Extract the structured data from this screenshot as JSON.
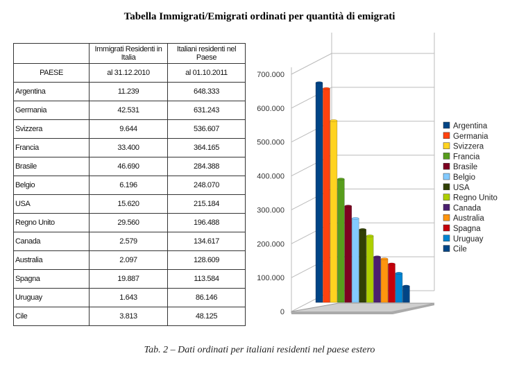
{
  "title": "Tabella Immigrati/Emigrati ordinati per quantità di emigrati",
  "caption": "Tab. 2 – Dati ordinati per italiani residenti nel paese estero",
  "table": {
    "header1": [
      "",
      "Immigrati  Residenti  in Italia",
      "Italiani  residenti nel Paese"
    ],
    "header2": [
      "PAESE",
      "al 31.12.2010",
      "al 01.10.2011"
    ],
    "rows": [
      [
        "Argentina",
        "11.239",
        "648.333"
      ],
      [
        "Germania",
        "42.531",
        "631.243"
      ],
      [
        "Svizzera",
        "9.644",
        "536.607"
      ],
      [
        "Francia",
        "33.400",
        "364.165"
      ],
      [
        "Brasile",
        "46.690",
        "284.388"
      ],
      [
        "Belgio",
        "6.196",
        "248.070"
      ],
      [
        "USA",
        "15.620",
        "215.184"
      ],
      [
        "Regno Unito",
        "29.560",
        "196.488"
      ],
      [
        "Canada",
        "2.579",
        "134.617"
      ],
      [
        "Australia",
        "2.097",
        "128.609"
      ],
      [
        "Spagna",
        "19.887",
        "113.584"
      ],
      [
        "Uruguay",
        "1.643",
        "86.146"
      ],
      [
        "Cile",
        "3.813",
        "48.125"
      ]
    ]
  },
  "chart_data": {
    "type": "bar",
    "title": "",
    "xlabel": "",
    "ylabel": "",
    "ylim": [
      0,
      700000
    ],
    "yticks": [
      "0",
      "100.000",
      "200.000",
      "300.000",
      "400.000",
      "500.000",
      "600.000",
      "700.000"
    ],
    "legend_position": "right",
    "series": [
      {
        "name": "Argentina",
        "value": 648333,
        "color": "#004586"
      },
      {
        "name": "Germania",
        "value": 631243,
        "color": "#ff420e"
      },
      {
        "name": "Svizzera",
        "value": 536607,
        "color": "#ffd320"
      },
      {
        "name": "Francia",
        "value": 364165,
        "color": "#579d1c"
      },
      {
        "name": "Brasile",
        "value": 284388,
        "color": "#7e0021"
      },
      {
        "name": "Belgio",
        "value": 248070,
        "color": "#83caff"
      },
      {
        "name": "USA",
        "value": 215184,
        "color": "#314004"
      },
      {
        "name": "Regno Unito",
        "value": 196488,
        "color": "#aecf00"
      },
      {
        "name": "Canada",
        "value": 134617,
        "color": "#4b1f6f"
      },
      {
        "name": "Australia",
        "value": 128609,
        "color": "#ff950e"
      },
      {
        "name": "Spagna",
        "value": 113584,
        "color": "#c5000b"
      },
      {
        "name": "Uruguay",
        "value": 86146,
        "color": "#0084d1"
      },
      {
        "name": "Cile",
        "value": 48125,
        "color": "#004586"
      }
    ]
  }
}
